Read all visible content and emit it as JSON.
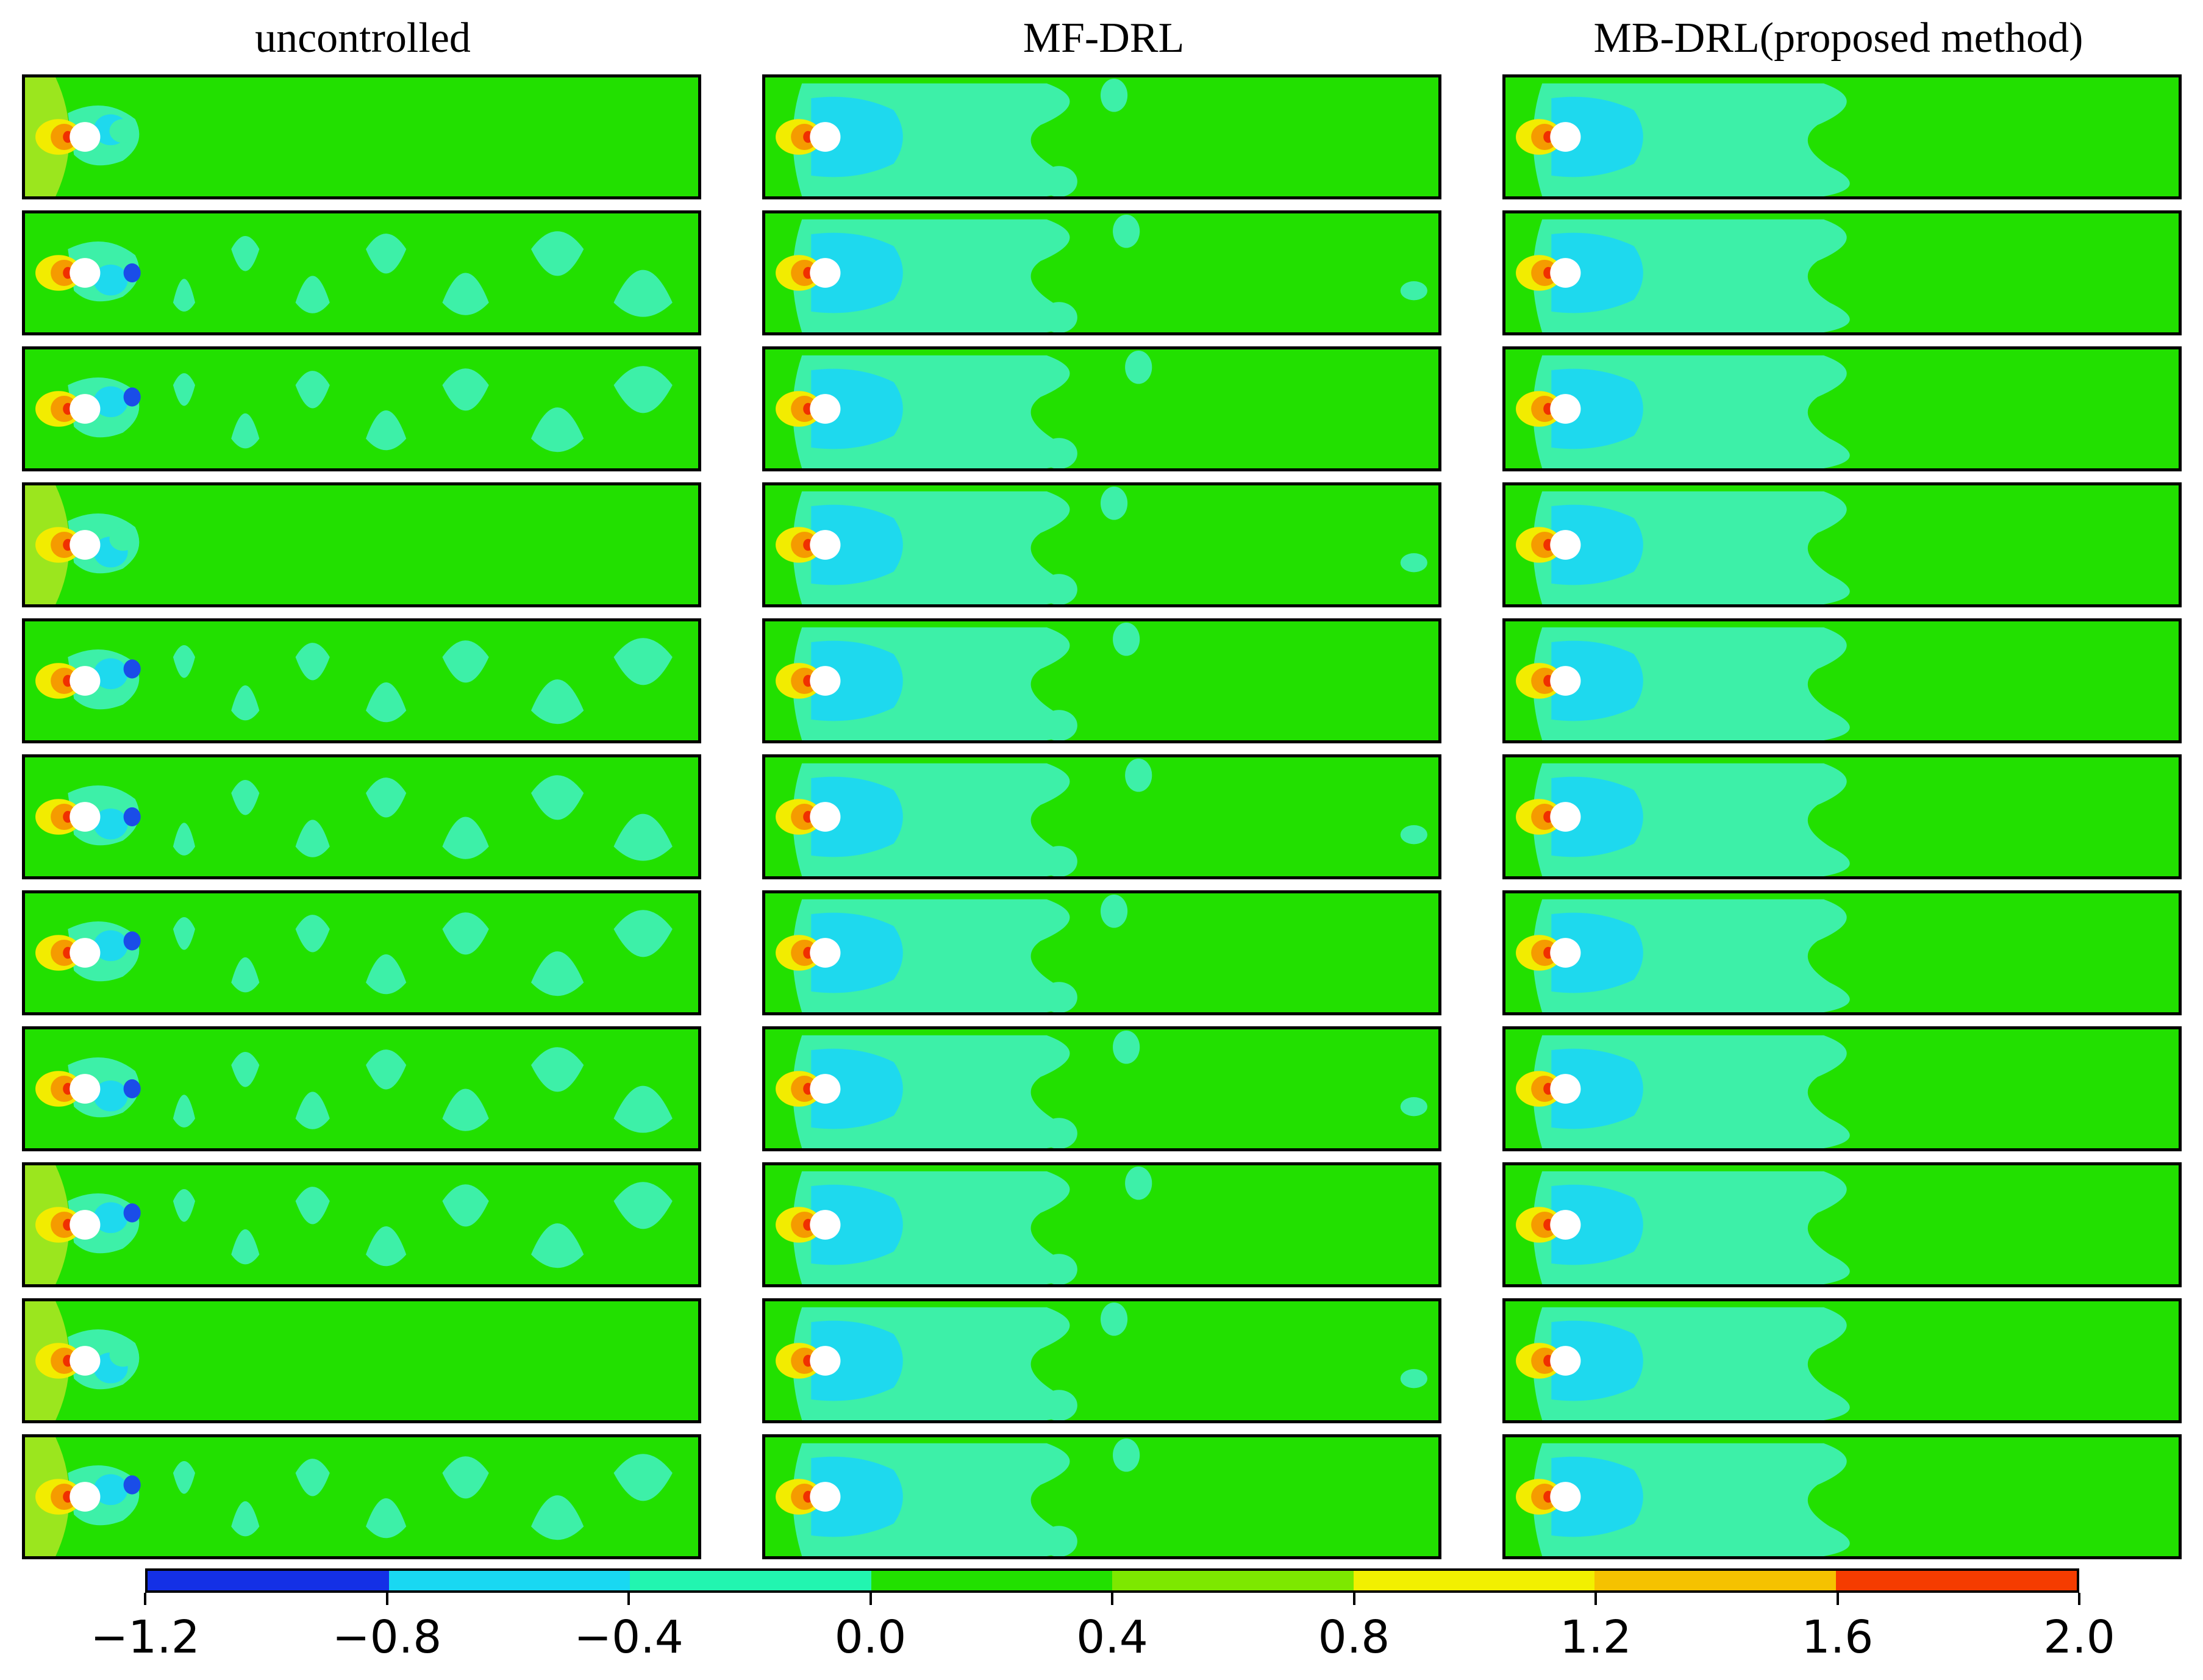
{
  "figure": {
    "columns": [
      {
        "title": "uncontrolled",
        "variant": "uncontrolled"
      },
      {
        "title": "MF-DRL",
        "variant": "mf"
      },
      {
        "title": "MB-DRL(proposed method)",
        "variant": "mb"
      }
    ],
    "snapshots_per_column": 11,
    "colorbar": {
      "ticks": [
        "−1.2",
        "−0.8",
        "−0.4",
        "0.0",
        "0.4",
        "0.8",
        "1.2",
        "1.6",
        "2.0"
      ],
      "segment_colors": [
        "#1430e6",
        "#19d8f2",
        "#22f5b0",
        "#22e000",
        "#7de800",
        "#f2f000",
        "#f5c200",
        "#f53c00"
      ]
    },
    "field_colors": {
      "background": "#22e000",
      "wake_light": "#3df0a8",
      "wake_dark": "#1ed9ee",
      "vortex_core": "#1a4de8",
      "inlet_band": "#9be61e",
      "stagnation_yellow": "#f2ec00",
      "stagnation_orange": "#f59b00",
      "stagnation_red": "#f03000",
      "cylinder": "#ffffff"
    }
  }
}
